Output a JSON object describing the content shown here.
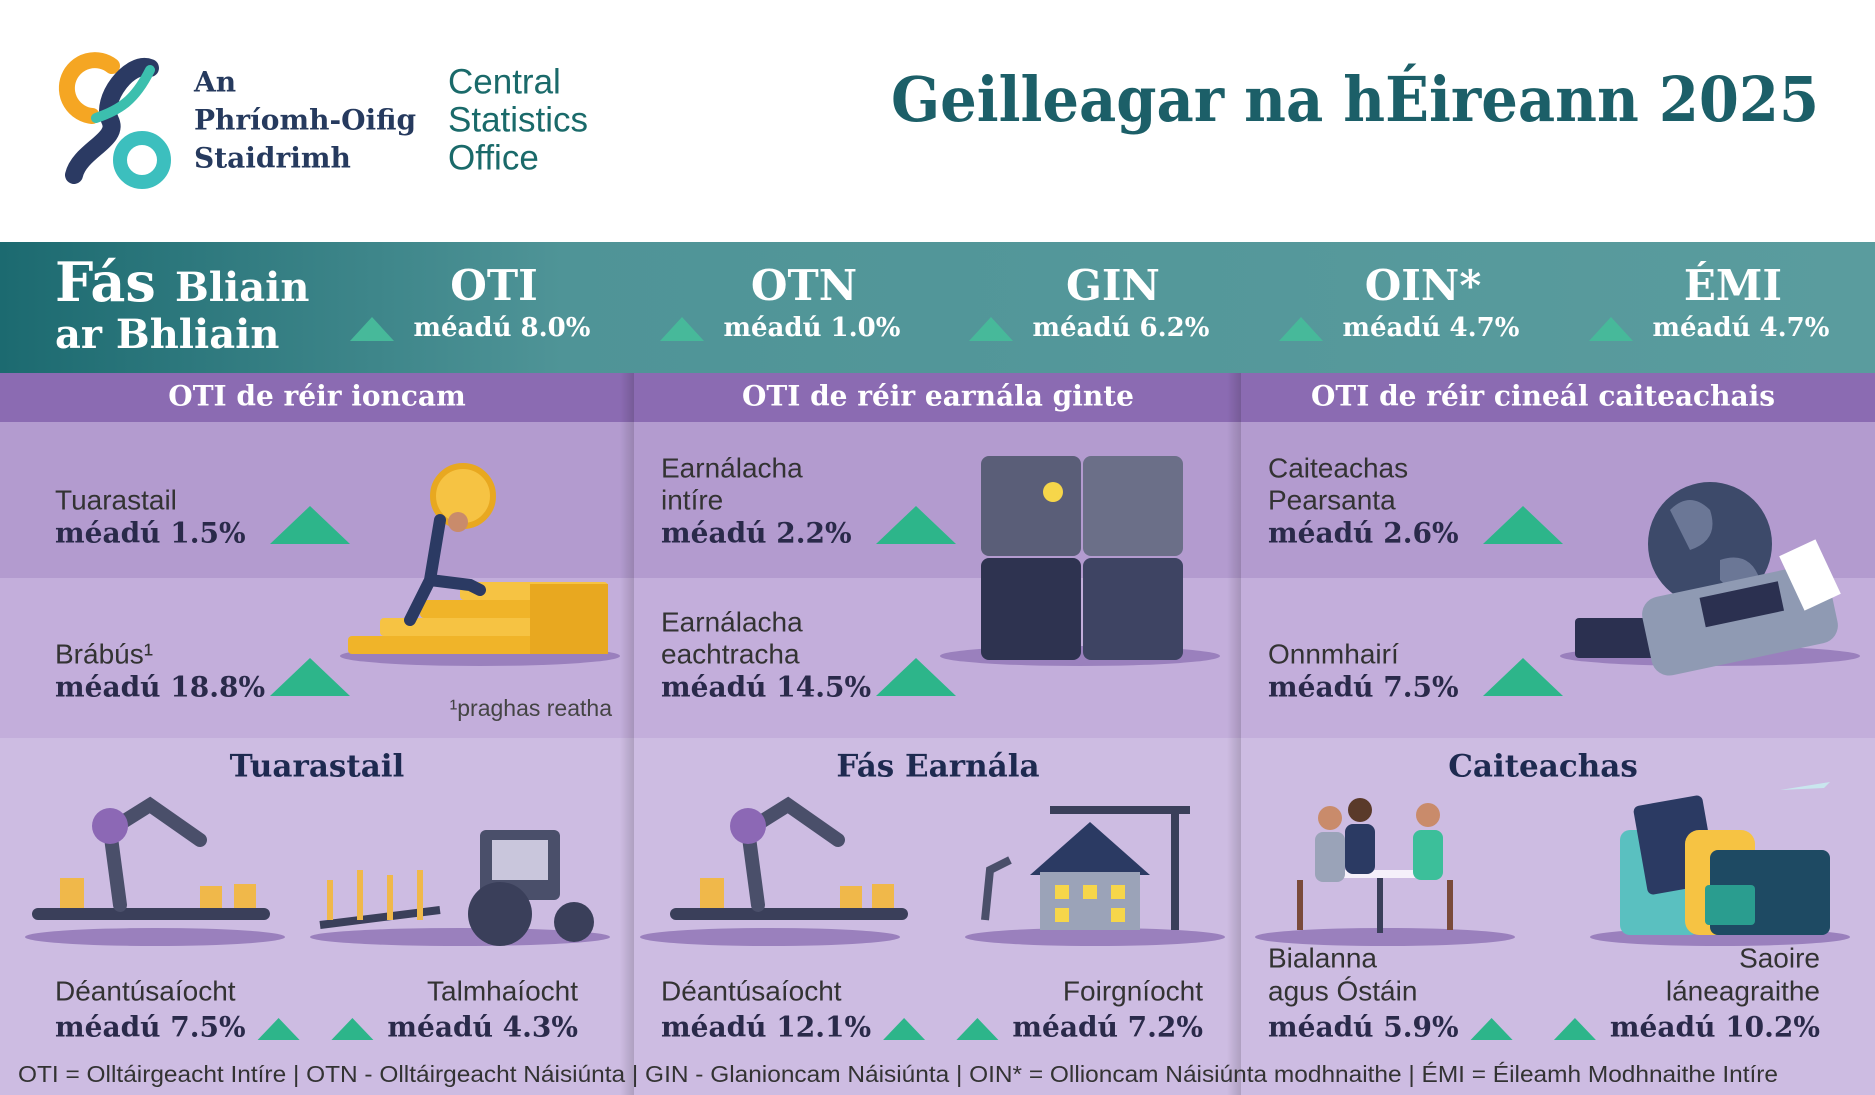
{
  "header": {
    "logo_irish": [
      "An",
      "Phríomh-Oifig",
      "Staidrimh"
    ],
    "logo_english": [
      "Central",
      "Statistics",
      "Office"
    ],
    "title": "Geilleagar na hÉireann 2025"
  },
  "growth": {
    "label_big": "Fás",
    "label_rest": [
      "Bliain",
      "ar Bhliain"
    ],
    "indicators": [
      {
        "name": "OTI",
        "change": "méadú 8.0%"
      },
      {
        "name": "OTN",
        "change": "méadú 1.0%"
      },
      {
        "name": "GIN",
        "change": "méadú 6.2%"
      },
      {
        "name": "OIN*",
        "change": "méadú 4.7%"
      },
      {
        "name": "ÉMI",
        "change": "méadú 4.7%"
      }
    ]
  },
  "panels": [
    {
      "title": "OTI de réir ioncam",
      "items": [
        {
          "label": [
            "Tuarastail"
          ],
          "change": "méadú 1.5%"
        },
        {
          "label": [
            "Brábús¹"
          ],
          "change": "méadú 18.8%"
        }
      ],
      "note": "¹praghas reatha",
      "subtitle": "Tuarastail",
      "bottom": [
        {
          "label": [
            "Déantúsaíocht"
          ],
          "change": "méadú 7.5%"
        },
        {
          "label": [
            "Talmhaíocht"
          ],
          "change": "méadú 4.3%"
        }
      ]
    },
    {
      "title": "OTI de réir earnála ginte",
      "items": [
        {
          "label": [
            "Earnálacha",
            "intíre"
          ],
          "change": "méadú 2.2%"
        },
        {
          "label": [
            "Earnálacha",
            "eachtracha"
          ],
          "change": "méadú 14.5%"
        }
      ],
      "subtitle": "Fás Earnála",
      "bottom": [
        {
          "label": [
            "Déantúsaíocht"
          ],
          "change": "méadú 12.1%"
        },
        {
          "label": [
            "Foirgníocht"
          ],
          "change": "méadú 7.2%"
        }
      ]
    },
    {
      "title": "OTI de réir cineál caiteachais",
      "items": [
        {
          "label": [
            "Caiteachas",
            "Pearsanta"
          ],
          "change": "méadú 2.6%"
        },
        {
          "label": [
            "Onnmhairí"
          ],
          "change": "méadú 7.5%"
        }
      ],
      "subtitle": "Caiteachas",
      "bottom": [
        {
          "label": [
            "Bialanna",
            "agus Óstáin"
          ],
          "change": "méadú 5.9%"
        },
        {
          "label": [
            "Saoire",
            "láneagraithe"
          ],
          "change": "méadú 10.2%"
        }
      ]
    }
  ],
  "footer": "OTI = Olltáirgeacht Intíre | OTN - Olltáirgeacht Náisiúnta | GIN - Glanioncam Náisiúnta | OIN* = Ollioncam Náisiúnta modhnaithe  |  ÉMI = Éileamh Modhnaithe Intíre"
}
